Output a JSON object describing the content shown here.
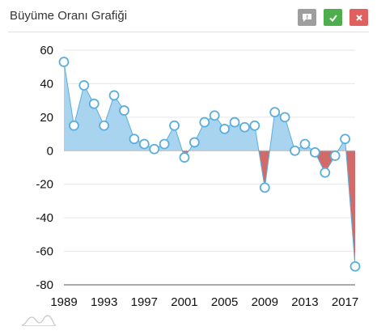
{
  "header": {
    "title": "Büyüme Oranı Grafiği",
    "buttons": [
      {
        "icon": "comment-icon",
        "color": "#9e9e9e"
      },
      {
        "icon": "check-icon",
        "color": "#4cae4c"
      },
      {
        "icon": "close-icon",
        "color": "#e06060"
      }
    ]
  },
  "chart_data": {
    "type": "area",
    "title": "Büyüme Oranı Grafiği",
    "xlabel": "",
    "ylabel": "",
    "x": [
      1989,
      1990,
      1991,
      1992,
      1993,
      1994,
      1995,
      1996,
      1997,
      1998,
      1999,
      2000,
      2001,
      2002,
      2003,
      2004,
      2005,
      2006,
      2007,
      2008,
      2009,
      2010,
      2011,
      2012,
      2013,
      2014,
      2015,
      2016,
      2017,
      2018
    ],
    "values": [
      53,
      15,
      39,
      28,
      15,
      33,
      24,
      7,
      4,
      1,
      4,
      15,
      -4,
      5,
      17,
      21,
      13,
      17,
      14,
      15,
      -22,
      23,
      20,
      0,
      4,
      -1,
      -13,
      -3,
      7,
      -69
    ],
    "ylim": [
      -80,
      60
    ],
    "xlim": [
      1989,
      2018
    ],
    "yticks": [
      60,
      40,
      20,
      0,
      -20,
      -40,
      -60,
      -80
    ],
    "xticks": [
      1989,
      1993,
      1997,
      2001,
      2005,
      2009,
      2013,
      2017
    ],
    "grid": true,
    "colors": {
      "positive_fill": "#a8d4ef",
      "negative_fill": "#d36a6a",
      "line": "#5aaedb",
      "marker_stroke": "#5aaedb",
      "marker_fill": "#ffffff"
    }
  }
}
